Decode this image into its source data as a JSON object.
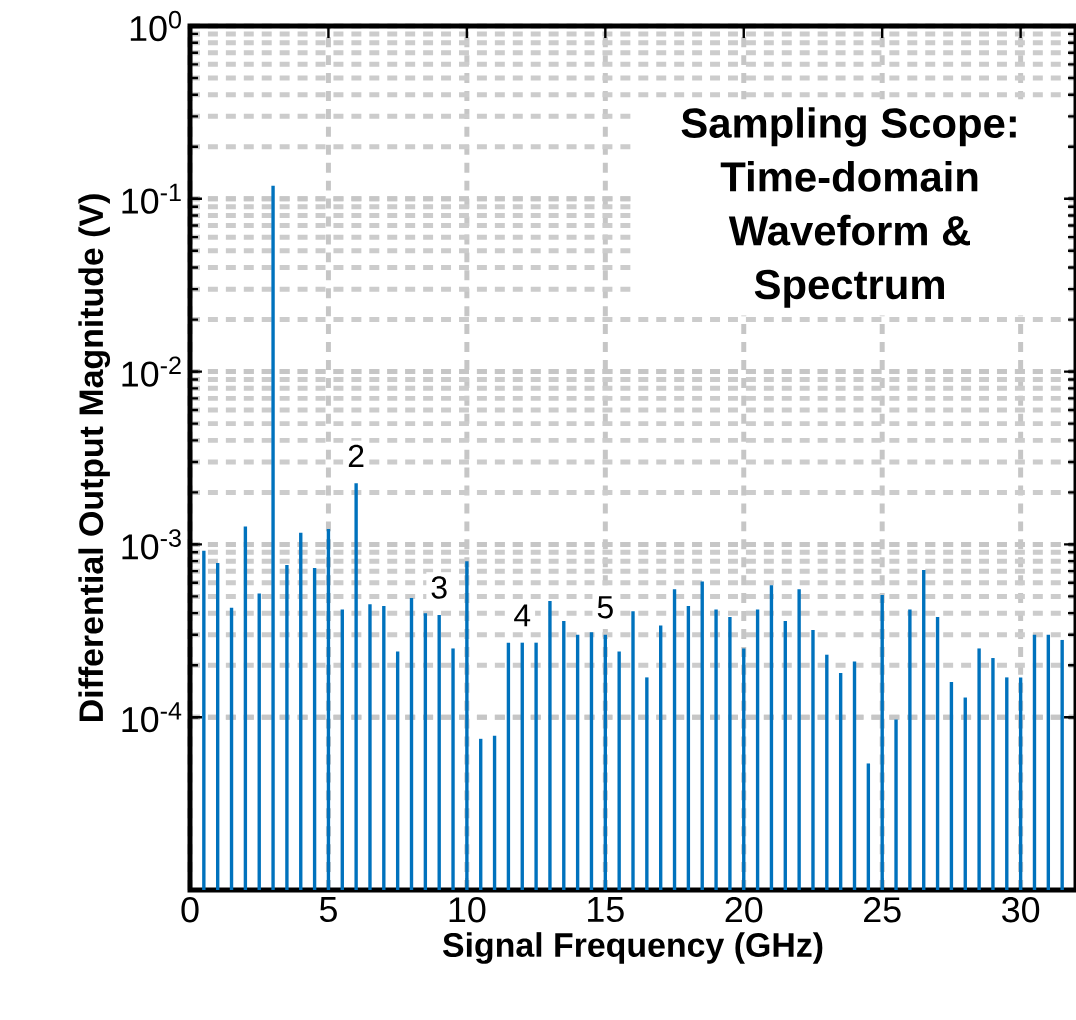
{
  "chart_data": {
    "type": "bar",
    "title": "Sampling Scope: Time-domain Waveform & Spectrum",
    "xlabel": "Signal Frequency (GHz)",
    "ylabel": "Differential Output Magnitude (V)",
    "x": [
      0.5,
      1.0,
      1.5,
      2.0,
      2.5,
      3.0,
      3.5,
      4.0,
      4.5,
      5.0,
      5.5,
      6.0,
      6.5,
      7.0,
      7.5,
      8.0,
      8.5,
      9.0,
      9.5,
      10.0,
      10.5,
      11.0,
      11.5,
      12.0,
      12.5,
      13.0,
      13.5,
      14.0,
      14.5,
      15.0,
      15.5,
      16.0,
      16.5,
      17.0,
      17.5,
      18.0,
      18.5,
      19.0,
      19.5,
      20.0,
      20.5,
      21.0,
      21.5,
      22.0,
      22.5,
      23.0,
      23.5,
      24.0,
      24.5,
      25.0,
      25.5,
      26.0,
      26.5,
      27.0,
      27.5,
      28.0,
      28.5,
      29.0,
      29.5,
      30.0,
      30.5,
      31.0,
      31.5
    ],
    "values": [
      0.00092,
      0.00078,
      0.00043,
      0.00127,
      0.00052,
      0.119,
      0.00076,
      0.00117,
      0.00073,
      0.00123,
      0.00042,
      0.00226,
      0.00045,
      0.00044,
      0.00024,
      0.00049,
      0.0004,
      0.00039,
      0.00025,
      0.0008,
      7.5e-05,
      7.8e-05,
      0.00027,
      0.00027,
      0.00027,
      0.00047,
      0.00036,
      0.0003,
      0.00031,
      0.0003,
      0.00024,
      0.00041,
      0.00017,
      0.00034,
      0.00055,
      0.00044,
      0.00061,
      0.00042,
      0.00038,
      0.00025,
      0.00042,
      0.00058,
      0.00036,
      0.00055,
      0.00032,
      0.00023,
      0.00018,
      0.00021,
      5.4e-05,
      0.00051,
      9.7e-05,
      0.00042,
      0.00071,
      0.00038,
      0.00016,
      0.00013,
      0.00025,
      0.00022,
      0.00017,
      0.00017,
      0.0003,
      0.0003,
      0.00028
    ],
    "color": "#0072bd",
    "log": true,
    "grid": true,
    "xlim": [
      0,
      32
    ],
    "ylim": [
      1e-05,
      1
    ],
    "xticks": [
      0,
      5,
      10,
      15,
      20,
      25,
      30
    ],
    "yticks": [
      {
        "value": 0.0001,
        "label": "10$^{-4}$"
      },
      {
        "value": 0.001,
        "label": "10$^{-3}$"
      },
      {
        "value": 0.01,
        "label": "10$^{-2}$"
      },
      {
        "value": 0.1,
        "label": "10$^{-1}$"
      },
      {
        "value": 1,
        "label": "10$^{0}$"
      }
    ],
    "annotations": [
      {
        "text": "2",
        "x": 6.0,
        "y": 0.00226
      },
      {
        "text": "3",
        "x": 9.0,
        "y": 0.00039
      },
      {
        "text": "4",
        "x": 12.0,
        "y": 0.00027
      },
      {
        "text": "5",
        "x": 15.0,
        "y": 0.0003
      }
    ]
  }
}
